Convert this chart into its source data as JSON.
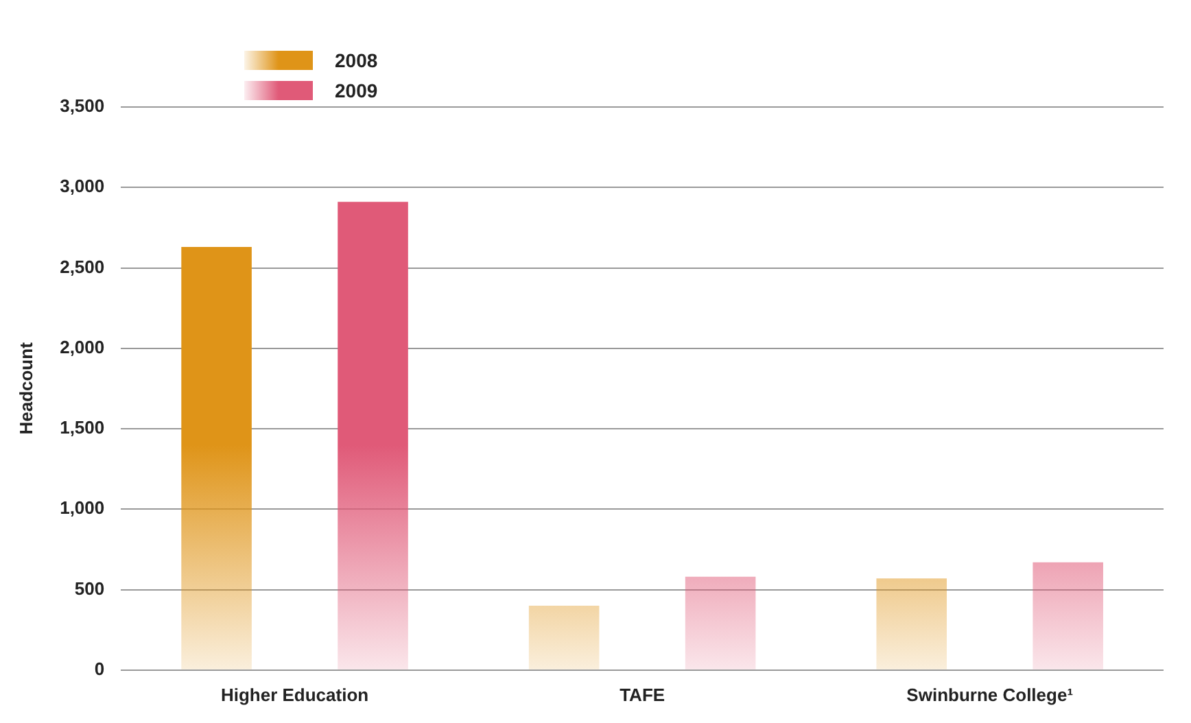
{
  "chart_data": {
    "type": "bar",
    "ylabel": "Headcount",
    "categories": [
      "Higher Education",
      "TAFE",
      "Swinburne College¹"
    ],
    "series": [
      {
        "name": "2008",
        "color": "#df9418",
        "values": [
          2630,
          400,
          570
        ]
      },
      {
        "name": "2009",
        "color": "#e05a78",
        "values": [
          2910,
          580,
          670
        ]
      }
    ],
    "ylim": [
      0,
      3500
    ],
    "yticks": [
      0,
      500,
      {
        "value": 1000,
        "label": "1,000"
      },
      {
        "value": 1500,
        "label": "1,500"
      },
      {
        "value": 2000,
        "label": "2,000"
      },
      {
        "value": 2500,
        "label": "2,500"
      },
      {
        "value": 3000,
        "label": "3,000"
      },
      {
        "value": 3500,
        "label": "3,500"
      }
    ],
    "grid": "y",
    "legend": "top left"
  }
}
